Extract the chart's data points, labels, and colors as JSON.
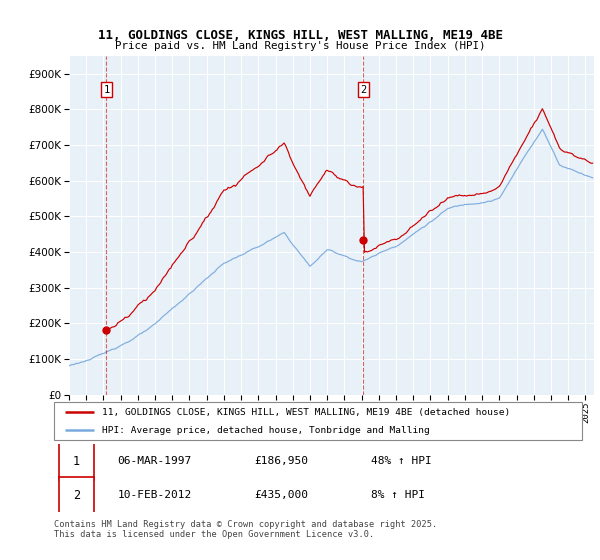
{
  "title_line1": "11, GOLDINGS CLOSE, KINGS HILL, WEST MALLING, ME19 4BE",
  "title_line2": "Price paid vs. HM Land Registry's House Price Index (HPI)",
  "legend_line1": "11, GOLDINGS CLOSE, KINGS HILL, WEST MALLING, ME19 4BE (detached house)",
  "legend_line2": "HPI: Average price, detached house, Tonbridge and Malling",
  "sale1_date": "06-MAR-1997",
  "sale1_price": 186950,
  "sale1_hpi": "48% ↑ HPI",
  "sale2_date": "10-FEB-2012",
  "sale2_price": 435000,
  "sale2_hpi": "8% ↑ HPI",
  "footer": "Contains HM Land Registry data © Crown copyright and database right 2025.\nThis data is licensed under the Open Government Licence v3.0.",
  "red_color": "#cc0000",
  "blue_color": "#7aaadd",
  "bg_color": "#e8f0f8",
  "ylim_max": 950000,
  "xlim_min": 1995.0,
  "xlim_max": 2025.5,
  "sale1_x": 1997.17,
  "sale2_x": 2012.1
}
